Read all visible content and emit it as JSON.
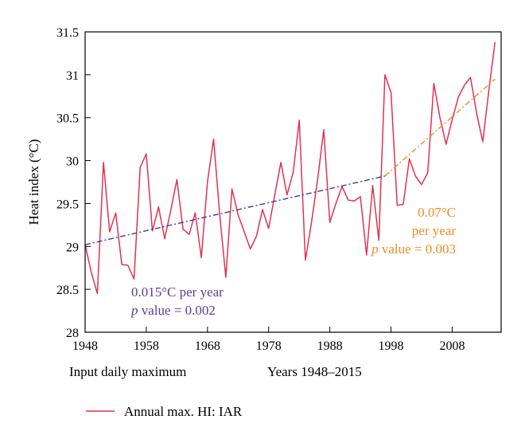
{
  "chart_data": {
    "type": "line",
    "xlabel": "Years 1948–2015",
    "ylabel": "Heat index (°C)",
    "x_note": "Input daily maximum",
    "xlim": [
      1948,
      2016
    ],
    "ylim": [
      28,
      31.5
    ],
    "xticks": [
      "1948",
      "1958",
      "1968",
      "1978",
      "1988",
      "1998",
      "2008"
    ],
    "yticks": [
      "28",
      "28.5",
      "29",
      "29.5",
      "30",
      "30.5",
      "31",
      "31.5"
    ],
    "grid": false,
    "legend_position": "bottom-left",
    "series": [
      {
        "name": "Annual max. HI: IAR",
        "color": "#e0334f",
        "x": [
          1948,
          1949,
          1950,
          1951,
          1952,
          1953,
          1954,
          1955,
          1956,
          1957,
          1958,
          1959,
          1960,
          1961,
          1962,
          1963,
          1964,
          1965,
          1966,
          1967,
          1968,
          1969,
          1970,
          1971,
          1972,
          1973,
          1974,
          1975,
          1976,
          1977,
          1978,
          1979,
          1980,
          1981,
          1982,
          1983,
          1984,
          1985,
          1986,
          1987,
          1988,
          1989,
          1990,
          1991,
          1992,
          1993,
          1994,
          1995,
          1996,
          1997,
          1998,
          1999,
          2000,
          2001,
          2002,
          2003,
          2004,
          2005,
          2006,
          2007,
          2008,
          2009,
          2010,
          2011,
          2012,
          2013,
          2014,
          2015
        ],
        "y": [
          29.02,
          28.7,
          28.45,
          29.98,
          29.17,
          29.39,
          28.79,
          28.78,
          28.62,
          29.92,
          30.08,
          29.18,
          29.46,
          29.09,
          29.42,
          29.78,
          29.2,
          29.14,
          29.39,
          28.87,
          29.75,
          30.25,
          29.37,
          28.64,
          29.67,
          29.37,
          29.17,
          28.97,
          29.12,
          29.43,
          29.21,
          29.6,
          29.98,
          29.6,
          29.86,
          30.47,
          28.84,
          29.28,
          29.78,
          30.36,
          29.28,
          29.5,
          29.7,
          29.54,
          29.53,
          29.58,
          28.9,
          29.71,
          29.07,
          31.0,
          30.79,
          29.48,
          29.49,
          30.02,
          29.82,
          29.72,
          29.86,
          30.9,
          30.5,
          30.19,
          30.48,
          30.74,
          30.88,
          30.97,
          30.55,
          30.22,
          30.82,
          31.38
        ]
      }
    ],
    "trend_lines": [
      {
        "color": "#3d3d9e",
        "x": [
          1948,
          1997
        ],
        "y": [
          29.02,
          29.82
        ]
      },
      {
        "color": "#f28a1e",
        "x": [
          1997,
          2015
        ],
        "y": [
          29.82,
          30.95
        ]
      }
    ],
    "annotations": [
      {
        "color": "#5b3d9a",
        "lines": [
          "0.015°C per year",
          "p value = 0.002"
        ],
        "anchor": "start"
      },
      {
        "color": "#f28a1e",
        "lines": [
          "0.07°C",
          "per year",
          "p value = 0.003"
        ],
        "anchor": "end"
      }
    ]
  }
}
